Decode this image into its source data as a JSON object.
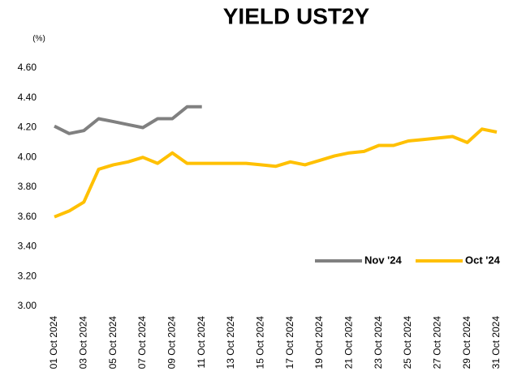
{
  "chart_data": {
    "type": "line",
    "title": "YIELD UST2Y",
    "y_label": "(%)",
    "categories": [
      "01 Oct 2024",
      null,
      "03 Oct 2024",
      null,
      "05 Oct 2024",
      null,
      "07 Oct 2024",
      null,
      "09 Oct 2024",
      null,
      "11 Oct 2024",
      null,
      "13 Oct 2024",
      null,
      "15 Oct 2024",
      null,
      "17 Oct 2024",
      null,
      "19 Oct 2024",
      null,
      "21 Oct 2024",
      null,
      "23 Oct 2024",
      null,
      "25 Oct 2024",
      null,
      "27 Oct 2024",
      null,
      "29 Oct 2024",
      null,
      "31 Oct 2024"
    ],
    "series": [
      {
        "name": "Nov '24",
        "color": "#808080",
        "values": [
          4.21,
          4.16,
          4.18,
          4.26,
          4.24,
          4.22,
          4.2,
          4.26,
          4.26,
          4.34,
          4.34,
          null,
          null,
          null,
          null,
          null,
          null,
          null,
          null,
          null,
          null,
          null,
          null,
          null,
          null,
          null,
          null,
          null,
          null,
          null,
          null
        ]
      },
      {
        "name": "Oct '24",
        "color": "#ffc000",
        "values": [
          3.6,
          3.64,
          3.7,
          3.92,
          3.95,
          3.97,
          4.0,
          3.96,
          4.03,
          3.96,
          3.96,
          3.96,
          3.96,
          3.96,
          3.95,
          3.94,
          3.97,
          3.95,
          3.98,
          4.01,
          4.03,
          4.04,
          4.08,
          4.08,
          4.11,
          4.12,
          4.13,
          4.14,
          4.1,
          4.19,
          4.17
        ]
      }
    ],
    "ylim": [
      3.0,
      4.6
    ],
    "yticks": [
      {
        "value": 3.0,
        "label": "3.00"
      },
      {
        "value": 3.2,
        "label": "3.20"
      },
      {
        "value": 3.4,
        "label": "3.40"
      },
      {
        "value": 3.6,
        "label": "3.60"
      },
      {
        "value": 3.8,
        "label": "3.80"
      },
      {
        "value": 4.0,
        "label": "4.00"
      },
      {
        "value": 4.2,
        "label": "4.20"
      },
      {
        "value": 4.4,
        "label": "4.40"
      },
      {
        "value": 4.6,
        "label": "4.60"
      }
    ],
    "grid": false,
    "legend": "right"
  }
}
